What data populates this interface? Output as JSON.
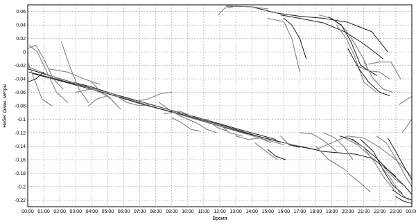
{
  "chart_data": {
    "type": "line",
    "title": "",
    "xlabel": "Время",
    "ylabel": "Набег фазы, метры",
    "grid": true,
    "legend": "none",
    "xlim": [
      0,
      24
    ],
    "ylim": [
      -0.23,
      0.07
    ],
    "x_ticks": [
      "00:00",
      "01:00",
      "02:00",
      "03:00",
      "04:00",
      "05:00",
      "06:00",
      "07:00",
      "08:00",
      "09:00",
      "10:00",
      "11:00",
      "12:00",
      "13:00",
      "14:00",
      "15:00",
      "16:00",
      "17:00",
      "18:00",
      "19:00",
      "20:00",
      "21:00",
      "22:00",
      "23:00",
      "00:00"
    ],
    "y_ticks": [
      0.06,
      0.04,
      0.02,
      0,
      -0.02,
      -0.04,
      -0.06,
      -0.08,
      -0.1,
      -0.12,
      -0.14,
      -0.16,
      -0.18,
      -0.2,
      -0.22
    ],
    "y_tick_labels": [
      "0.06",
      "0.04",
      "0.02",
      "0",
      "-0.02",
      "-0.04",
      "-0.06",
      "-0.08",
      "-0.1",
      "-0.12",
      "-0.14",
      "-0.16",
      "-0.18",
      "-0.2",
      "-0.22"
    ],
    "series_color_dark": "#1a1a1a",
    "series_color_light": "#808080",
    "series": [
      {
        "tone": "dark",
        "x": [
          0.0,
          2.0,
          4.0,
          6.0,
          8.0,
          10.0,
          12.0,
          14.0,
          15.8
        ],
        "y": [
          -0.025,
          -0.04,
          -0.052,
          -0.068,
          -0.083,
          -0.096,
          -0.11,
          -0.123,
          -0.134
        ]
      },
      {
        "tone": "dark",
        "x": [
          0.1,
          2.2,
          4.5,
          6.8,
          9.0,
          11.0,
          13.2,
          15.5
        ],
        "y": [
          -0.03,
          -0.043,
          -0.057,
          -0.072,
          -0.087,
          -0.1,
          -0.115,
          -0.13
        ]
      },
      {
        "tone": "light",
        "x": [
          0.0,
          1.5,
          3.5,
          5.5,
          7.5,
          9.5,
          11.5,
          13.5,
          16.0
        ],
        "y": [
          -0.022,
          -0.036,
          -0.05,
          -0.064,
          -0.079,
          -0.093,
          -0.107,
          -0.121,
          -0.138
        ]
      },
      {
        "tone": "dark",
        "x": [
          0.3,
          2.5,
          5.0,
          7.2,
          9.5,
          12.0,
          14.5,
          16.2
        ],
        "y": [
          -0.032,
          -0.046,
          -0.062,
          -0.078,
          -0.092,
          -0.108,
          -0.126,
          -0.136
        ]
      },
      {
        "tone": "light",
        "x": [
          0.0,
          0.5,
          1.0,
          1.6,
          2.2
        ],
        "y": [
          0.005,
          0.01,
          -0.01,
          -0.04,
          -0.055
        ]
      },
      {
        "tone": "light",
        "x": [
          0.1,
          0.6,
          1.2,
          1.8,
          2.5
        ],
        "y": [
          0.01,
          0.0,
          -0.03,
          -0.06,
          -0.075
        ]
      },
      {
        "tone": "light",
        "x": [
          0.0,
          0.4,
          0.9,
          1.5
        ],
        "y": [
          -0.015,
          -0.04,
          -0.07,
          -0.08
        ]
      },
      {
        "tone": "dark",
        "x": [
          0.0,
          0.5,
          1.0
        ],
        "y": [
          -0.045,
          -0.04,
          -0.03
        ]
      },
      {
        "tone": "light",
        "x": [
          1.3,
          2.5,
          3.5,
          4.5
        ],
        "y": [
          -0.025,
          -0.03,
          -0.04,
          -0.048
        ]
      },
      {
        "tone": "light",
        "x": [
          2.1,
          2.6,
          3.2,
          3.8
        ],
        "y": [
          0.015,
          -0.02,
          -0.055,
          -0.075
        ]
      },
      {
        "tone": "light",
        "x": [
          3.0,
          4.0,
          5.0,
          5.6
        ],
        "y": [
          -0.06,
          -0.055,
          -0.065,
          -0.08
        ]
      },
      {
        "tone": "light",
        "x": [
          4.0,
          4.6,
          5.2,
          5.8
        ],
        "y": [
          -0.045,
          -0.06,
          -0.07,
          -0.085
        ]
      },
      {
        "tone": "light",
        "x": [
          3.8,
          4.3,
          5.0
        ],
        "y": [
          -0.08,
          -0.07,
          -0.065
        ]
      },
      {
        "tone": "light",
        "x": [
          5.5,
          6.2,
          7.0,
          7.6
        ],
        "y": [
          -0.065,
          -0.075,
          -0.08,
          -0.078
        ]
      },
      {
        "tone": "light",
        "x": [
          6.8,
          7.5,
          8.3,
          9.0
        ],
        "y": [
          -0.073,
          -0.07,
          -0.062,
          -0.06
        ]
      },
      {
        "tone": "light",
        "x": [
          8.2,
          8.8,
          9.5,
          10.5
        ],
        "y": [
          -0.075,
          -0.085,
          -0.095,
          -0.105
        ]
      },
      {
        "tone": "light",
        "x": [
          8.5,
          9.5,
          10.5,
          11.0
        ],
        "y": [
          -0.092,
          -0.088,
          -0.098,
          -0.1
        ]
      },
      {
        "tone": "light",
        "x": [
          9.0,
          9.6,
          10.2,
          10.8
        ],
        "y": [
          -0.098,
          -0.105,
          -0.115,
          -0.118
        ]
      },
      {
        "tone": "light",
        "x": [
          10.0,
          10.5,
          11.2,
          11.8
        ],
        "y": [
          -0.1,
          -0.105,
          -0.115,
          -0.12
        ]
      },
      {
        "tone": "light",
        "x": [
          11.2,
          11.8,
          12.5
        ],
        "y": [
          -0.1,
          -0.112,
          -0.118
        ]
      },
      {
        "tone": "light",
        "x": [
          12.0,
          12.6,
          13.4
        ],
        "y": [
          -0.108,
          -0.12,
          -0.125
        ]
      },
      {
        "tone": "light",
        "x": [
          13.0,
          13.8,
          14.5,
          15.2
        ],
        "y": [
          -0.125,
          -0.13,
          -0.128,
          -0.135
        ]
      },
      {
        "tone": "light",
        "x": [
          14.2,
          15.0,
          15.6
        ],
        "y": [
          -0.135,
          -0.15,
          -0.16
        ]
      },
      {
        "tone": "dark",
        "x": [
          15.0,
          15.5,
          16.1
        ],
        "y": [
          -0.145,
          -0.155,
          -0.16
        ]
      },
      {
        "tone": "light",
        "x": [
          15.8,
          16.2,
          16.6,
          17.0
        ],
        "y": [
          -0.125,
          -0.135,
          -0.14,
          -0.142
        ]
      },
      {
        "tone": "dark",
        "x": [
          12.4,
          14.0,
          15.5,
          17.0,
          18.5,
          20.0,
          21.5,
          22.5
        ],
        "y": [
          0.068,
          0.067,
          0.058,
          0.053,
          0.05,
          0.044,
          0.03,
          0.0
        ]
      },
      {
        "tone": "dark",
        "x": [
          15.8,
          17.0,
          18.5,
          19.8,
          21.0,
          22.2
        ],
        "y": [
          0.055,
          0.05,
          0.043,
          0.03,
          0.012,
          -0.01
        ]
      },
      {
        "tone": "light",
        "x": [
          11.9,
          12.3,
          13.0,
          14.0,
          15.0
        ],
        "y": [
          0.055,
          0.065,
          0.068,
          0.067,
          0.064
        ]
      },
      {
        "tone": "light",
        "x": [
          15.0,
          16.0,
          16.5,
          16.8,
          17.0
        ],
        "y": [
          0.05,
          0.045,
          0.02,
          -0.01,
          -0.03
        ]
      },
      {
        "tone": "dark",
        "x": [
          16.0,
          16.5,
          17.0,
          17.4
        ],
        "y": [
          0.05,
          0.04,
          0.02,
          -0.01
        ]
      },
      {
        "tone": "light",
        "x": [
          18.2,
          19.0,
          19.8,
          20.5,
          21.2
        ],
        "y": [
          0.055,
          0.05,
          0.035,
          0.01,
          -0.02
        ]
      },
      {
        "tone": "dark",
        "x": [
          18.8,
          19.6,
          20.2,
          20.8,
          21.8
        ],
        "y": [
          0.052,
          0.04,
          0.015,
          -0.02,
          -0.035
        ]
      },
      {
        "tone": "light",
        "x": [
          19.3,
          19.9,
          20.4,
          21.0,
          21.8
        ],
        "y": [
          0.04,
          0.02,
          -0.005,
          -0.045,
          -0.06
        ]
      },
      {
        "tone": "dark",
        "x": [
          20.0,
          20.7,
          21.3,
          22.0,
          22.6
        ],
        "y": [
          0.005,
          -0.025,
          -0.045,
          -0.06,
          -0.065
        ]
      },
      {
        "tone": "light",
        "x": [
          20.5,
          21.3,
          22.0,
          22.6
        ],
        "y": [
          -0.02,
          -0.028,
          -0.03,
          -0.04
        ]
      },
      {
        "tone": "light",
        "x": [
          21.3,
          22.0,
          22.7,
          23.3
        ],
        "y": [
          -0.018,
          -0.015,
          -0.015,
          -0.04
        ]
      },
      {
        "tone": "light",
        "x": [
          21.0,
          21.6,
          22.2,
          22.8
        ],
        "y": [
          -0.015,
          -0.04,
          -0.055,
          -0.06
        ]
      },
      {
        "tone": "light",
        "x": [
          23.2,
          23.6,
          24.0
        ],
        "y": [
          -0.078,
          -0.072,
          -0.066
        ]
      },
      {
        "tone": "light",
        "x": [
          16.0,
          17.0,
          18.0,
          19.0,
          20.0,
          21.0,
          22.0,
          23.0,
          24.0
        ],
        "y": [
          -0.135,
          -0.14,
          -0.145,
          -0.135,
          -0.125,
          -0.128,
          -0.142,
          -0.16,
          -0.185
        ]
      },
      {
        "tone": "dark",
        "x": [
          16.3,
          17.5,
          18.5,
          19.5,
          20.5,
          21.5,
          22.5,
          23.5,
          24.0
        ],
        "y": [
          -0.138,
          -0.143,
          -0.148,
          -0.15,
          -0.152,
          -0.158,
          -0.175,
          -0.198,
          -0.212
        ]
      },
      {
        "tone": "light",
        "x": [
          17.0,
          17.8,
          18.5,
          19.3
        ],
        "y": [
          -0.12,
          -0.122,
          -0.132,
          -0.148
        ]
      },
      {
        "tone": "light",
        "x": [
          18.0,
          18.8,
          19.5,
          20.0
        ],
        "y": [
          -0.14,
          -0.16,
          -0.17,
          -0.178
        ]
      },
      {
        "tone": "light",
        "x": [
          18.5,
          19.2,
          19.8,
          20.3
        ],
        "y": [
          -0.12,
          -0.128,
          -0.142,
          -0.16
        ]
      },
      {
        "tone": "dark",
        "x": [
          19.5,
          20.3,
          21.0,
          21.8,
          22.5,
          23.0
        ],
        "y": [
          -0.125,
          -0.13,
          -0.142,
          -0.158,
          -0.175,
          -0.185
        ]
      },
      {
        "tone": "light",
        "x": [
          19.8,
          20.6,
          21.4,
          22.2,
          23.0,
          23.6
        ],
        "y": [
          -0.128,
          -0.138,
          -0.155,
          -0.17,
          -0.19,
          -0.2
        ]
      },
      {
        "tone": "light",
        "x": [
          20.2,
          21.0,
          21.7,
          22.3,
          22.9
        ],
        "y": [
          -0.13,
          -0.142,
          -0.165,
          -0.188,
          -0.205
        ]
      },
      {
        "tone": "dark",
        "x": [
          20.8,
          21.6,
          22.2,
          22.8,
          23.4
        ],
        "y": [
          -0.13,
          -0.148,
          -0.175,
          -0.198,
          -0.21
        ]
      },
      {
        "tone": "light",
        "x": [
          21.8,
          22.4,
          23.0,
          23.6,
          24.0
        ],
        "y": [
          -0.125,
          -0.135,
          -0.158,
          -0.185,
          -0.2
        ]
      },
      {
        "tone": "dark",
        "x": [
          22.5,
          23.0,
          23.5,
          24.0
        ],
        "y": [
          -0.128,
          -0.148,
          -0.17,
          -0.19
        ]
      },
      {
        "tone": "light",
        "x": [
          22.0,
          22.6,
          23.2,
          23.8
        ],
        "y": [
          -0.168,
          -0.185,
          -0.208,
          -0.22
        ]
      },
      {
        "tone": "dark",
        "x": [
          22.8,
          23.4,
          24.0
        ],
        "y": [
          -0.205,
          -0.215,
          -0.22
        ]
      },
      {
        "tone": "dark",
        "x": [
          23.0,
          23.5,
          24.0
        ],
        "y": [
          -0.215,
          -0.222,
          -0.225
        ]
      },
      {
        "tone": "light",
        "x": [
          20.0,
          20.8,
          21.4
        ],
        "y": [
          -0.18,
          -0.195,
          -0.208
        ]
      },
      {
        "tone": "light",
        "x": [
          23.4,
          23.7,
          24.0
        ],
        "y": [
          -0.12,
          -0.11,
          -0.1
        ]
      }
    ]
  }
}
